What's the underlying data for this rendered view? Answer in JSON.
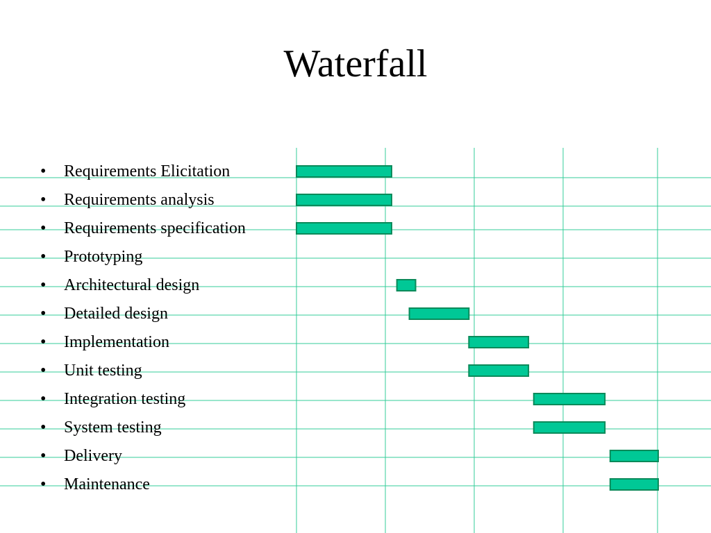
{
  "slide": {
    "title": "Waterfall"
  },
  "chart_data": {
    "type": "bar",
    "orientation": "gantt",
    "title": "Waterfall",
    "xlabel": "",
    "ylabel": "",
    "xlim": [
      0,
      4
    ],
    "grid": true,
    "legend": "none",
    "colors": {
      "bar_fill": "#00c896",
      "bar_stroke": "#0a8a5a",
      "grid": "#33cc99"
    },
    "tasks": [
      {
        "label": "Requirements Elicitation",
        "start": 0.0,
        "end": 1.07
      },
      {
        "label": "Requirements analysis",
        "start": 0.0,
        "end": 1.07
      },
      {
        "label": "Requirements specification",
        "start": 0.0,
        "end": 1.07
      },
      {
        "label": "Prototyping",
        "start": null,
        "end": null
      },
      {
        "label": "Architectural design",
        "start": 1.13,
        "end": 1.34
      },
      {
        "label": "Detailed design",
        "start": 1.27,
        "end": 1.94
      },
      {
        "label": "Implementation",
        "start": 1.94,
        "end": 2.61
      },
      {
        "label": "Unit testing",
        "start": 1.94,
        "end": 2.61
      },
      {
        "label": "Integration testing",
        "start": 2.67,
        "end": 3.47
      },
      {
        "label": "System testing",
        "start": 2.67,
        "end": 3.47
      },
      {
        "label": "Delivery",
        "start": 3.53,
        "end": 4.07
      },
      {
        "label": "Maintenance",
        "start": 3.53,
        "end": 4.07
      }
    ]
  }
}
